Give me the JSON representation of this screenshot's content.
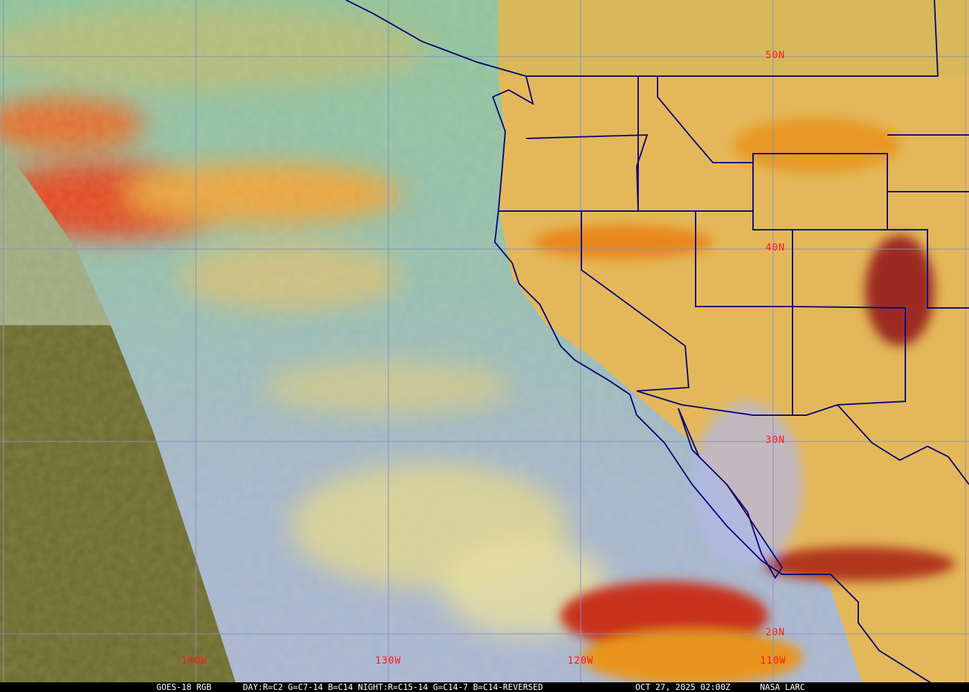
{
  "caption": {
    "product": "GOES-18 RGB",
    "recipe": "DAY:R=C2 G=C7-14 B=C14 NIGHT:R=C15-14 G=C14-7 B=C14-REVERSED",
    "datetime": "OCT 27, 2025 02:00Z",
    "credit": "NASA LARC"
  },
  "latitude_labels": [
    "50N",
    "40N",
    "30N",
    "20N"
  ],
  "longitude_labels": [
    "140W",
    "130W",
    "120W",
    "110W"
  ],
  "colors": {
    "label": "#ff1a1a",
    "grid": "#8a8fb8",
    "borders": "#0a0a7a",
    "ocean_clear": "#9ab8c8",
    "land": "#e2b45a",
    "cloud_high": "#d8402a"
  }
}
